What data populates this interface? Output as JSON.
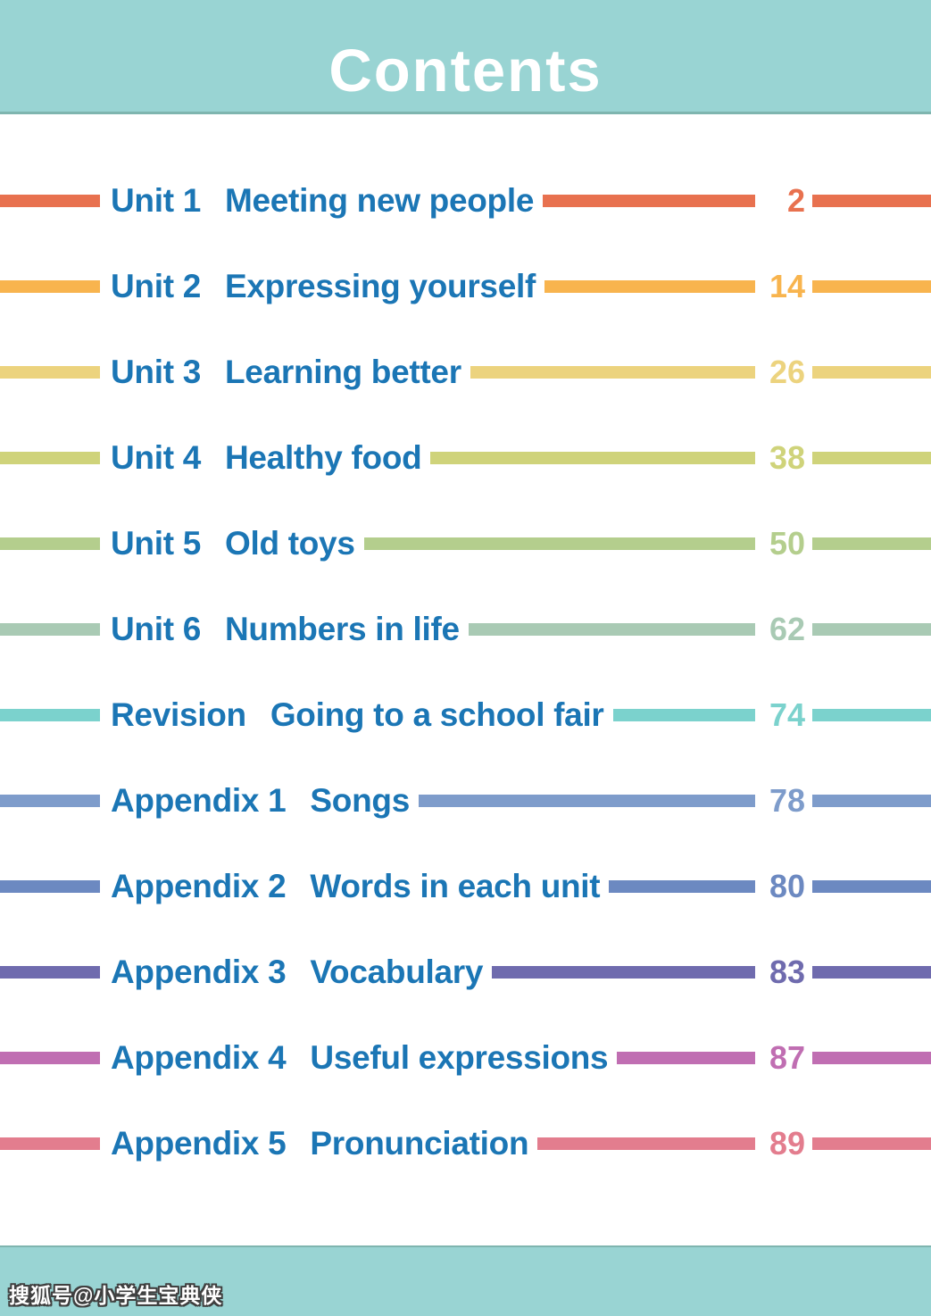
{
  "header": {
    "title": "Contents"
  },
  "colors": {
    "band": "#99D4D3",
    "band_edge": "#7FB5AF",
    "page_bg": "#FFFFFF",
    "entry_text": "#1B76B5"
  },
  "toc": {
    "entries": [
      {
        "label": "Unit 1",
        "title": "Meeting new people",
        "page": "2",
        "color": "#E8714F"
      },
      {
        "label": "Unit 2",
        "title": "Expressing yourself",
        "page": "14",
        "color": "#F8B44E"
      },
      {
        "label": "Unit 3",
        "title": "Learning better",
        "page": "26",
        "color": "#ECD37E"
      },
      {
        "label": "Unit 4",
        "title": "Healthy food",
        "page": "38",
        "color": "#CFD37A"
      },
      {
        "label": "Unit 5",
        "title": "Old toys",
        "page": "50",
        "color": "#B4CE8D"
      },
      {
        "label": "Unit 6",
        "title": "Numbers in life",
        "page": "62",
        "color": "#A9CAB4"
      },
      {
        "label": "Revision",
        "title": "Going to a school fair",
        "page": "74",
        "color": "#7BD2CD"
      },
      {
        "label": "Appendix 1",
        "title": "Songs",
        "page": "78",
        "color": "#7E9CCB"
      },
      {
        "label": "Appendix 2",
        "title": "Words in each unit",
        "page": "80",
        "color": "#6C89C1"
      },
      {
        "label": "Appendix 3",
        "title": "Vocabulary",
        "page": "83",
        "color": "#6F6BAE"
      },
      {
        "label": "Appendix 4",
        "title": "Useful expressions",
        "page": "87",
        "color": "#C06EB2"
      },
      {
        "label": "Appendix 5",
        "title": "Pronunciation",
        "page": "89",
        "color": "#E37D8E"
      }
    ]
  },
  "footer": {
    "watermark": "搜狐号@小学生宝典侠"
  }
}
